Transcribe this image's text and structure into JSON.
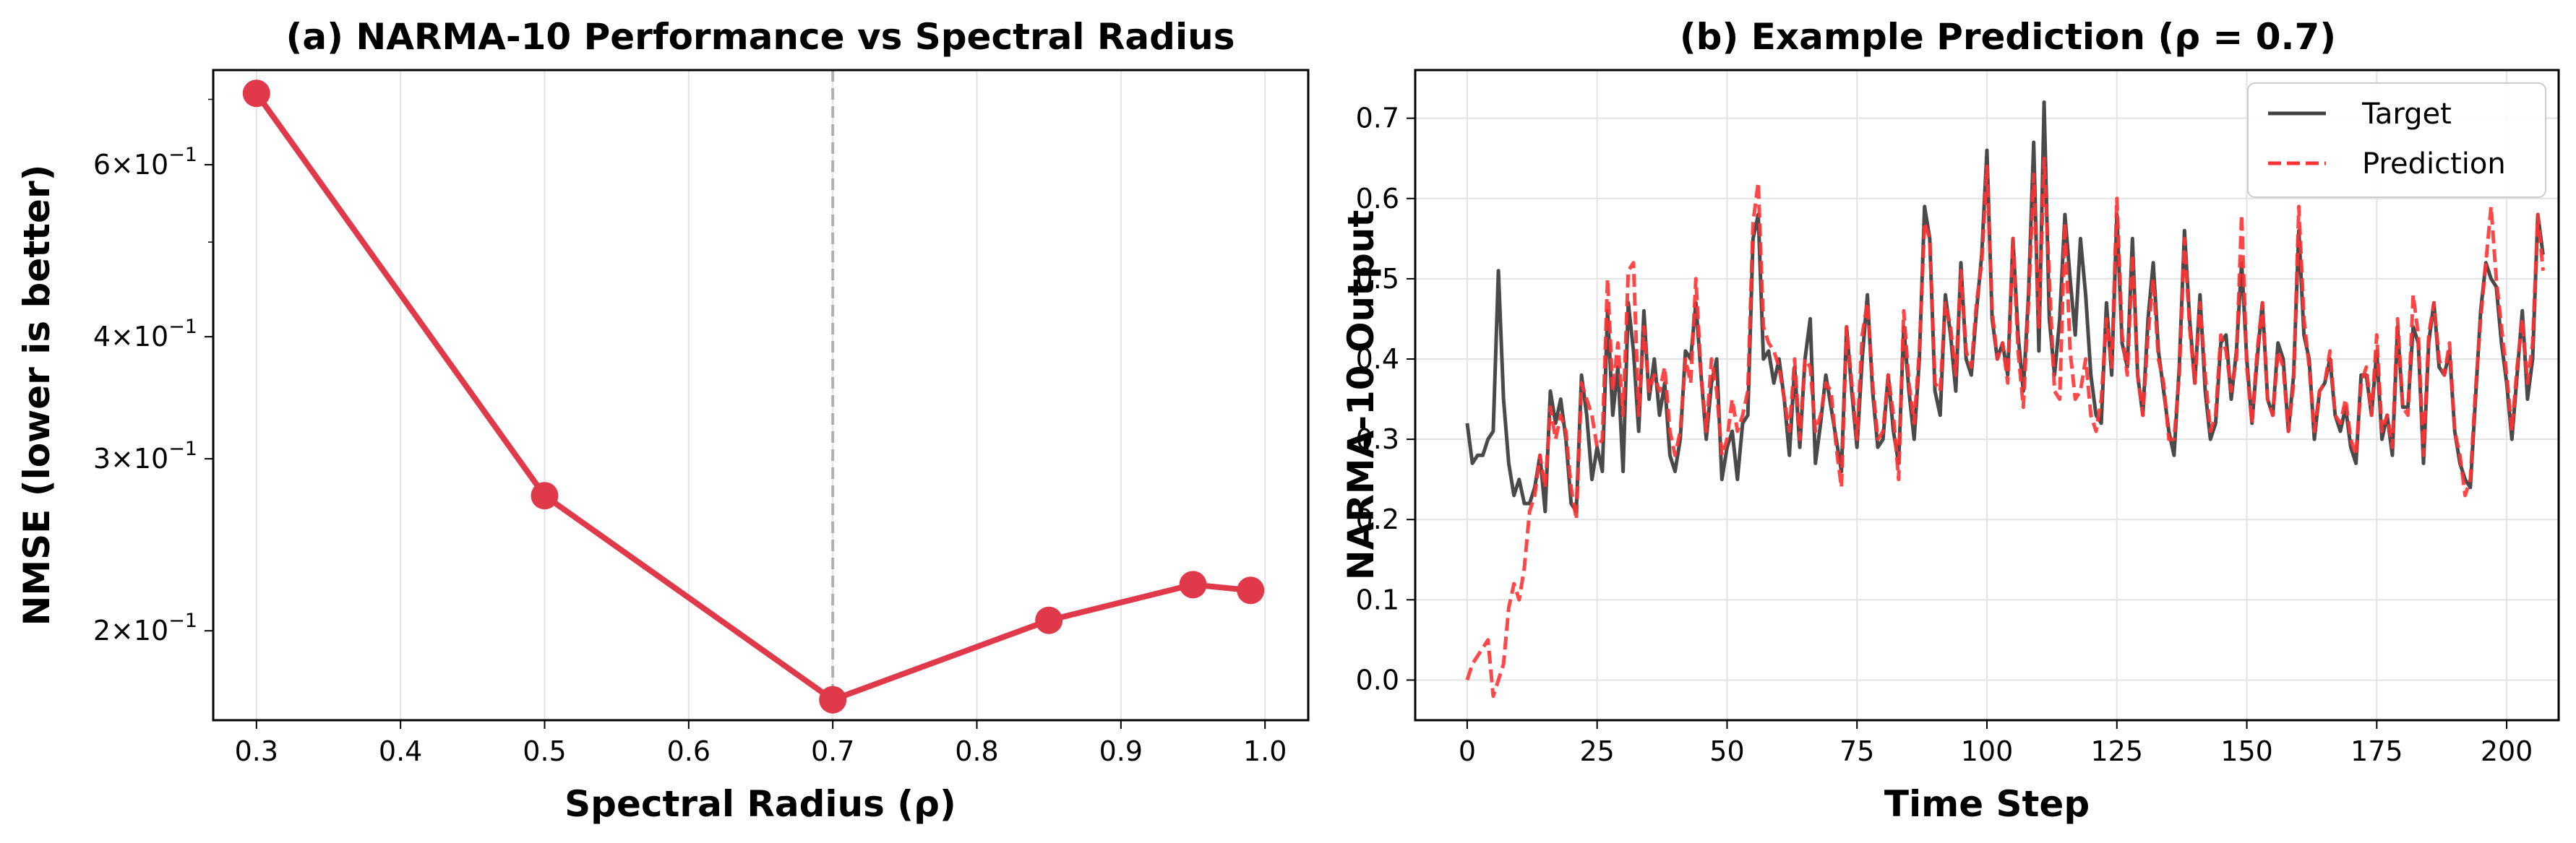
{
  "chart_data": [
    {
      "type": "line",
      "title": "(a) NARMA-10 Performance vs Spectral Radius",
      "xlabel": "Spectral Radius (ρ)",
      "ylabel": "NMSE (lower is better)",
      "yscale": "log",
      "xlim": [
        0.27,
        1.03
      ],
      "ylim": [
        0.162,
        0.75
      ],
      "x_ticks": [
        0.3,
        0.4,
        0.5,
        0.6,
        0.7,
        0.8,
        0.9,
        1.0
      ],
      "x_tick_labels": [
        "0.3",
        "0.4",
        "0.5",
        "0.6",
        "0.7",
        "0.8",
        "0.9",
        "1.0"
      ],
      "y_ticks": [
        0.2,
        0.3,
        0.4,
        0.6
      ],
      "y_tick_base": [
        "2",
        "3",
        "4",
        "6"
      ],
      "y_tick_exp_base": "10",
      "y_tick_exp": "−1",
      "grid": true,
      "color": "#E0394A",
      "vline": {
        "x": 0.7,
        "color": "#b0b0b0",
        "style": "dashed"
      },
      "series": [
        {
          "x": [
            0.3,
            0.5,
            0.7,
            0.85,
            0.95,
            0.99
          ],
          "values": [
            0.71,
            0.275,
            0.17,
            0.205,
            0.223,
            0.22
          ]
        }
      ]
    },
    {
      "type": "line",
      "title": "(b) Example Prediction (ρ = 0.7)",
      "xlabel": "Time Step",
      "ylabel": "NARMA-10 Output",
      "xlim": [
        -10,
        210
      ],
      "ylim": [
        -0.05,
        0.76
      ],
      "x_ticks": [
        0,
        25,
        50,
        75,
        100,
        125,
        150,
        175,
        200
      ],
      "x_tick_labels": [
        "0",
        "25",
        "50",
        "75",
        "100",
        "125",
        "150",
        "175",
        "200"
      ],
      "y_ticks": [
        0.0,
        0.1,
        0.2,
        0.3,
        0.4,
        0.5,
        0.6,
        0.7
      ],
      "y_tick_labels": [
        "0.0",
        "0.1",
        "0.2",
        "0.3",
        "0.4",
        "0.5",
        "0.6",
        "0.7"
      ],
      "grid": true,
      "legend_position": "top-right",
      "series": [
        {
          "name": "Target",
          "color": "#404040",
          "style": "solid",
          "x_start": 0,
          "values": [
            0.32,
            0.27,
            0.28,
            0.28,
            0.3,
            0.31,
            0.51,
            0.35,
            0.27,
            0.23,
            0.25,
            0.22,
            0.22,
            0.24,
            0.28,
            0.21,
            0.36,
            0.32,
            0.35,
            0.3,
            0.22,
            0.21,
            0.38,
            0.33,
            0.25,
            0.29,
            0.26,
            0.46,
            0.33,
            0.39,
            0.26,
            0.47,
            0.41,
            0.31,
            0.46,
            0.35,
            0.4,
            0.33,
            0.37,
            0.28,
            0.26,
            0.3,
            0.41,
            0.4,
            0.47,
            0.38,
            0.3,
            0.37,
            0.4,
            0.25,
            0.29,
            0.31,
            0.25,
            0.32,
            0.33,
            0.55,
            0.58,
            0.4,
            0.41,
            0.37,
            0.4,
            0.35,
            0.28,
            0.39,
            0.29,
            0.4,
            0.45,
            0.27,
            0.32,
            0.38,
            0.34,
            0.3,
            0.26,
            0.44,
            0.36,
            0.29,
            0.4,
            0.48,
            0.36,
            0.29,
            0.3,
            0.38,
            0.31,
            0.27,
            0.44,
            0.36,
            0.3,
            0.4,
            0.59,
            0.55,
            0.36,
            0.33,
            0.48,
            0.43,
            0.36,
            0.52,
            0.4,
            0.38,
            0.46,
            0.53,
            0.66,
            0.45,
            0.4,
            0.42,
            0.38,
            0.55,
            0.43,
            0.36,
            0.48,
            0.67,
            0.41,
            0.72,
            0.45,
            0.38,
            0.45,
            0.58,
            0.5,
            0.43,
            0.55,
            0.48,
            0.38,
            0.33,
            0.32,
            0.47,
            0.38,
            0.58,
            0.42,
            0.39,
            0.55,
            0.38,
            0.33,
            0.45,
            0.52,
            0.41,
            0.36,
            0.31,
            0.28,
            0.39,
            0.56,
            0.45,
            0.37,
            0.48,
            0.36,
            0.3,
            0.32,
            0.42,
            0.43,
            0.35,
            0.41,
            0.52,
            0.4,
            0.32,
            0.4,
            0.47,
            0.35,
            0.33,
            0.42,
            0.4,
            0.31,
            0.38,
            0.56,
            0.43,
            0.4,
            0.3,
            0.36,
            0.37,
            0.4,
            0.33,
            0.31,
            0.34,
            0.29,
            0.27,
            0.38,
            0.38,
            0.33,
            0.41,
            0.3,
            0.33,
            0.28,
            0.44,
            0.34,
            0.34,
            0.44,
            0.42,
            0.27,
            0.42,
            0.47,
            0.39,
            0.38,
            0.41,
            0.31,
            0.27,
            0.25,
            0.24,
            0.35,
            0.46,
            0.52,
            0.5,
            0.49,
            0.42,
            0.37,
            0.3,
            0.38,
            0.46,
            0.35,
            0.4,
            0.58,
            0.53
          ]
        },
        {
          "name": "Prediction",
          "color": "#FF3333",
          "style": "dashed",
          "x_start": 0,
          "values": [
            0.0,
            0.02,
            0.03,
            0.04,
            0.05,
            -0.02,
            0.0,
            0.02,
            0.09,
            0.12,
            0.1,
            0.14,
            0.21,
            0.23,
            0.28,
            0.24,
            0.34,
            0.3,
            0.33,
            0.31,
            0.24,
            0.2,
            0.37,
            0.35,
            0.33,
            0.29,
            0.3,
            0.5,
            0.36,
            0.42,
            0.33,
            0.51,
            0.52,
            0.33,
            0.44,
            0.36,
            0.38,
            0.36,
            0.39,
            0.31,
            0.28,
            0.31,
            0.4,
            0.37,
            0.5,
            0.38,
            0.31,
            0.4,
            0.36,
            0.28,
            0.3,
            0.35,
            0.31,
            0.33,
            0.36,
            0.57,
            0.62,
            0.44,
            0.42,
            0.41,
            0.39,
            0.35,
            0.31,
            0.4,
            0.3,
            0.4,
            0.39,
            0.31,
            0.33,
            0.37,
            0.36,
            0.29,
            0.24,
            0.44,
            0.37,
            0.3,
            0.43,
            0.47,
            0.37,
            0.3,
            0.31,
            0.38,
            0.33,
            0.25,
            0.46,
            0.37,
            0.32,
            0.41,
            0.57,
            0.55,
            0.37,
            0.36,
            0.47,
            0.44,
            0.38,
            0.51,
            0.41,
            0.39,
            0.47,
            0.52,
            0.64,
            0.46,
            0.4,
            0.42,
            0.37,
            0.55,
            0.41,
            0.34,
            0.47,
            0.63,
            0.44,
            0.65,
            0.5,
            0.36,
            0.35,
            0.57,
            0.41,
            0.35,
            0.36,
            0.4,
            0.33,
            0.31,
            0.35,
            0.45,
            0.39,
            0.6,
            0.43,
            0.38,
            0.53,
            0.38,
            0.33,
            0.43,
            0.5,
            0.4,
            0.37,
            0.3,
            0.3,
            0.38,
            0.55,
            0.44,
            0.37,
            0.47,
            0.38,
            0.31,
            0.33,
            0.43,
            0.41,
            0.36,
            0.4,
            0.58,
            0.39,
            0.32,
            0.41,
            0.47,
            0.35,
            0.33,
            0.41,
            0.39,
            0.31,
            0.37,
            0.59,
            0.45,
            0.39,
            0.31,
            0.36,
            0.37,
            0.41,
            0.33,
            0.32,
            0.35,
            0.3,
            0.28,
            0.37,
            0.39,
            0.33,
            0.43,
            0.31,
            0.33,
            0.29,
            0.45,
            0.34,
            0.33,
            0.48,
            0.43,
            0.28,
            0.43,
            0.47,
            0.4,
            0.38,
            0.42,
            0.31,
            0.28,
            0.23,
            0.25,
            0.36,
            0.45,
            0.52,
            0.59,
            0.5,
            0.44,
            0.38,
            0.31,
            0.39,
            0.45,
            0.37,
            0.42,
            0.58,
            0.51
          ]
        }
      ]
    }
  ]
}
